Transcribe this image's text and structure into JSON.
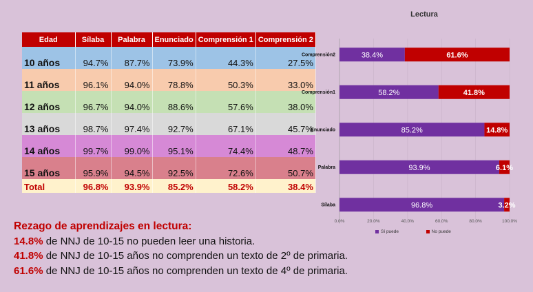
{
  "table": {
    "headers": [
      "Edad",
      "Sílaba",
      "Palabra",
      "Enunciado",
      "Comprensión 1",
      "Comprensión 2"
    ],
    "rows": [
      {
        "age": "10 años",
        "vals": [
          "94.7%",
          "87.7%",
          "73.9%",
          "44.3%",
          "27.5%"
        ],
        "color": "#9dc3e6"
      },
      {
        "age": "11 años",
        "vals": [
          "96.1%",
          "94.0%",
          "78.8%",
          "50.3%",
          "33.0%"
        ],
        "color": "#f8cbad"
      },
      {
        "age": "12 años",
        "vals": [
          "96.7%",
          "94.0%",
          "88.6%",
          "57.6%",
          "38.0%"
        ],
        "color": "#c5e0b4"
      },
      {
        "age": "13 años",
        "vals": [
          "98.7%",
          "97.4%",
          "92.7%",
          "67.1%",
          "45.7%"
        ],
        "color": "#d9d9d9"
      },
      {
        "age": "14 años",
        "vals": [
          "99.7%",
          "99.0%",
          "95.1%",
          "74.4%",
          "48.7%"
        ],
        "color": "#d689d6"
      },
      {
        "age": "15 años",
        "vals": [
          "95.9%",
          "94.5%",
          "92.5%",
          "72.6%",
          "50.7%"
        ],
        "color": "#d9808c"
      }
    ],
    "total": {
      "age": "Total",
      "vals": [
        "96.8%",
        "93.9%",
        "85.2%",
        "58.2%",
        "38.4%"
      ]
    }
  },
  "notes": {
    "heading": "Rezago de aprendizajes en lectura:",
    "lines": [
      {
        "pct": "14.8%",
        "text": " de NNJ de 10-15 no pueden leer una historia."
      },
      {
        "pct": "41.8%",
        "text": " de NNJ de 10-15 años no comprenden un texto de 2º de primaria."
      },
      {
        "pct": "61.6%",
        "text": " de NNJ de 10-15 años no comprenden un texto de 4º de primaria."
      }
    ]
  },
  "chart_data": {
    "type": "bar",
    "orientation": "horizontal",
    "stacked": true,
    "title": "Lectura",
    "categories": [
      "Comprensión2",
      "Comprensión1",
      "Enunciado",
      "Palabra",
      "Sílaba"
    ],
    "series": [
      {
        "name": "Sí puede",
        "values": [
          38.4,
          58.2,
          85.2,
          93.9,
          96.8
        ],
        "labels": [
          "38.4%",
          "58.2%",
          "85.2%",
          "93.9%",
          "96.8%"
        ],
        "color": "#7030a0"
      },
      {
        "name": "No puede",
        "values": [
          61.6,
          41.8,
          14.8,
          6.1,
          3.2
        ],
        "labels": [
          "61.6%",
          "41.8%",
          "14.8%",
          "6.1%",
          "3.2%"
        ],
        "color": "#c00000"
      }
    ],
    "x_ticks": [
      "0.0%",
      "20.0%",
      "40.0%",
      "60.0%",
      "80.0%",
      "100.0%"
    ],
    "xlim": [
      0,
      100
    ],
    "legend": "bottom"
  }
}
